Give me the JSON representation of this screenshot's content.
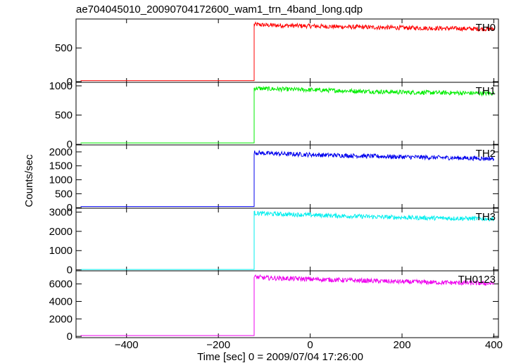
{
  "title": "ae704045010_20090704172600_wam1_trn_4band_long.qdp",
  "ylabel": "Counts/sec",
  "xlabel": "Time [sec] 0 = 2009/07/04 17:26:00",
  "chart_data": {
    "type": "line",
    "title": "ae704045010_20090704172600_wam1_trn_4band_long.qdp",
    "xlabel": "Time [sec] 0 = 2009/07/04 17:26:00",
    "ylabel": "Counts/sec",
    "xlim": [
      -510,
      410
    ],
    "x_ticks": [
      -400,
      -200,
      0,
      200,
      400
    ],
    "x_tick_labels": [
      "−400",
      "−200",
      "0",
      "200",
      "400"
    ],
    "step_time": -122,
    "grid": false,
    "panels": [
      {
        "name": "TH0",
        "color": "#ff0000",
        "ylim": [
          -10,
          930
        ],
        "yticks": [
          0,
          500
        ],
        "baseline": 15,
        "x": [
          -122,
          -100,
          0,
          100,
          200,
          300,
          400
        ],
        "values": [
          850,
          840,
          825,
          810,
          800,
          790,
          780
        ]
      },
      {
        "name": "TH1",
        "color": "#00ee00",
        "ylim": [
          -10,
          1060
        ],
        "yticks": [
          0,
          500,
          1000
        ],
        "baseline": 25,
        "x": [
          -122,
          -100,
          0,
          100,
          200,
          300,
          400
        ],
        "values": [
          960,
          950,
          930,
          910,
          890,
          880,
          870
        ]
      },
      {
        "name": "TH2",
        "color": "#0000ee",
        "ylim": [
          -20,
          2250
        ],
        "yticks": [
          0,
          500,
          1000,
          1500,
          2000
        ],
        "baseline": 40,
        "x": [
          -122,
          -100,
          0,
          100,
          200,
          300,
          400
        ],
        "values": [
          1980,
          1950,
          1900,
          1860,
          1820,
          1790,
          1760
        ]
      },
      {
        "name": "TH3",
        "color": "#00eeee",
        "ylim": [
          -50,
          3200
        ],
        "yticks": [
          0,
          1000,
          2000,
          3000
        ],
        "baseline": 20,
        "x": [
          -122,
          -100,
          0,
          100,
          200,
          300,
          400
        ],
        "values": [
          2950,
          2920,
          2850,
          2780,
          2720,
          2680,
          2650
        ]
      },
      {
        "name": "TH0123",
        "color": "#ee00ee",
        "ylim": [
          -150,
          7500
        ],
        "yticks": [
          0,
          2000,
          4000,
          6000
        ],
        "baseline": 90,
        "x": [
          -122,
          -100,
          0,
          100,
          200,
          300,
          400
        ],
        "values": [
          6800,
          6700,
          6550,
          6400,
          6250,
          6150,
          6050
        ]
      }
    ]
  }
}
